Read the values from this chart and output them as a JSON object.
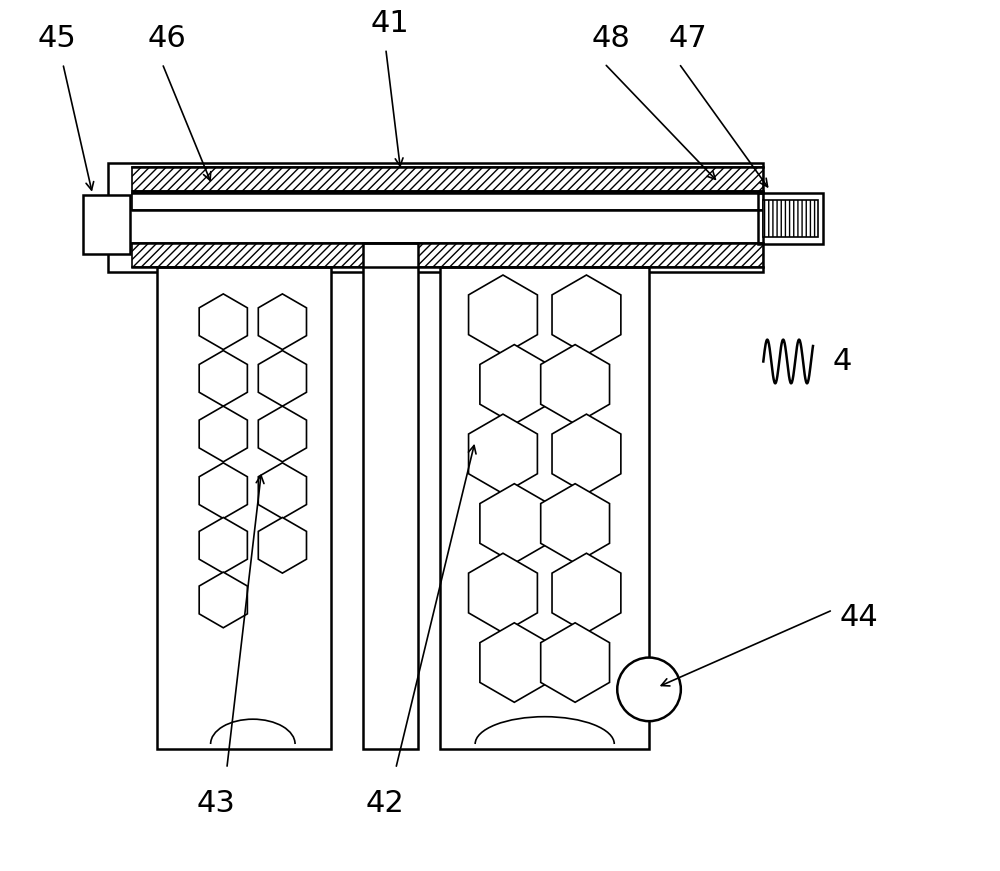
{
  "bg_color": "#ffffff",
  "line_color": "#000000",
  "label_color": "#000000",
  "fig_width": 10.0,
  "fig_height": 8.71,
  "label_fontsize": 22
}
